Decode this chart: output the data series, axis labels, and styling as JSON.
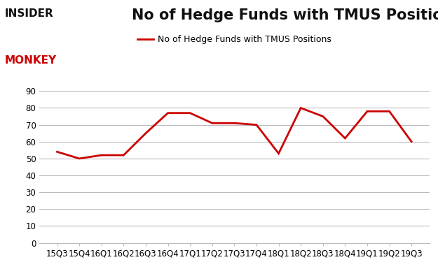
{
  "x_labels": [
    "15Q3",
    "15Q4",
    "16Q1",
    "16Q2",
    "16Q3",
    "16Q4",
    "17Q1",
    "17Q2",
    "17Q3",
    "17Q4",
    "18Q1",
    "18Q2",
    "18Q3",
    "18Q4",
    "19Q1",
    "19Q2",
    "19Q3"
  ],
  "y_values": [
    54,
    50,
    52,
    52,
    65,
    77,
    77,
    71,
    71,
    70,
    53,
    80,
    75,
    62,
    78,
    78,
    60
  ],
  "line_color": "#cc0000",
  "title": "No of Hedge Funds with TMUS Positions",
  "legend_label": "No of Hedge Funds with TMUS Positions",
  "ylim": [
    0,
    90
  ],
  "yticks": [
    0,
    10,
    20,
    30,
    40,
    50,
    60,
    70,
    80,
    90
  ],
  "background_color": "#ffffff",
  "grid_color": "#bbbbbb",
  "title_fontsize": 15,
  "legend_fontsize": 9,
  "tick_fontsize": 8.5
}
